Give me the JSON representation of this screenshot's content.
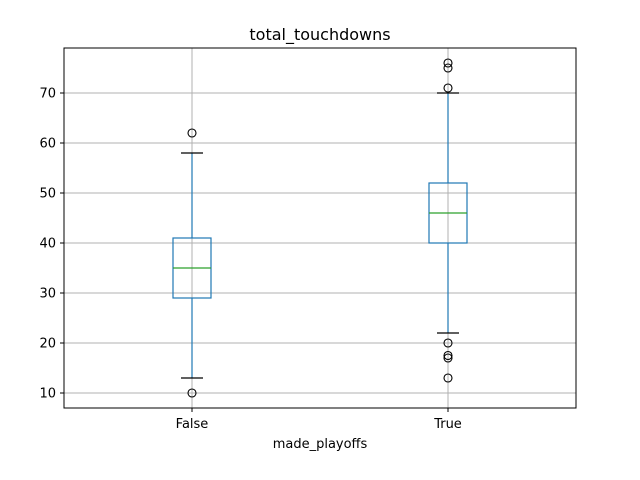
{
  "chart_data": {
    "type": "box",
    "title": "total_touchdowns",
    "xlabel": "made_playoffs",
    "ylabel": "",
    "ylim": [
      7,
      79
    ],
    "yticks": [
      10,
      20,
      30,
      40,
      50,
      60,
      70
    ],
    "grid": true,
    "legend": "none",
    "colors": {
      "box": "#1f77b4",
      "median": "#2ca02c",
      "whisker": "#1f77b4",
      "cap": "#000000",
      "flier": "#000000",
      "grid": "#b0b0b0",
      "frame": "#000000"
    },
    "categories": [
      "False",
      "True"
    ],
    "boxes": [
      {
        "category": "False",
        "whisker_low": 13,
        "q1": 29,
        "median": 35,
        "q3": 41,
        "whisker_high": 58,
        "fliers": [
          62,
          10
        ]
      },
      {
        "category": "True",
        "whisker_low": 22,
        "q1": 40,
        "median": 46,
        "q3": 52,
        "whisker_high": 70,
        "fliers": [
          76,
          75,
          71,
          20,
          17.5,
          17,
          13
        ]
      }
    ]
  }
}
